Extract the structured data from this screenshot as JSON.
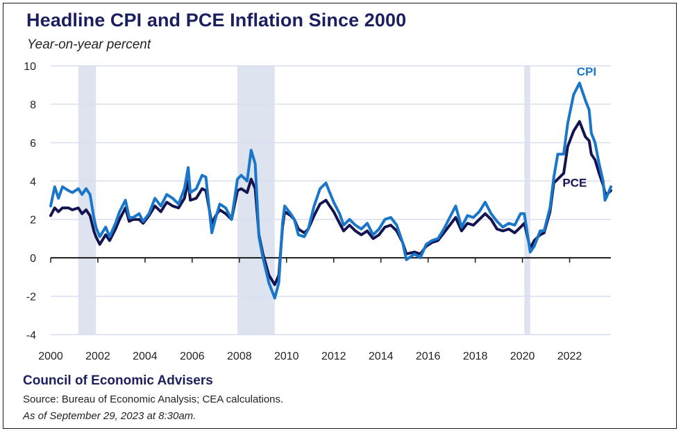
{
  "title": "Headline CPI and PCE Inflation Since 2000",
  "subtitle": "Year-on-year percent",
  "footer": {
    "org": "Council of Economic Advisers",
    "source": "Source: Bureau of Economic Analysis; CEA calculations.",
    "as_of": "As of September 29, 2023 at 8:30am."
  },
  "colors": {
    "cpi": "#1976c8",
    "pce": "#141450",
    "recession": "#dde3ef",
    "grid": "#d9def0",
    "axis": "#1a1a1a"
  },
  "chart_data": {
    "type": "line",
    "title": "Headline CPI and PCE Inflation Since 2000",
    "ylabel": "Year-on-year percent",
    "xlim": [
      2000,
      2023.75
    ],
    "ylim": [
      -4,
      10
    ],
    "yticks": [
      -4,
      -2,
      0,
      2,
      4,
      6,
      8,
      10
    ],
    "xticks": [
      2000,
      2002,
      2004,
      2006,
      2008,
      2010,
      2012,
      2014,
      2016,
      2018,
      2020,
      2022
    ],
    "ytick_labels": [
      "-4",
      "-2",
      "0",
      "2",
      "4",
      "6",
      "8",
      "10"
    ],
    "xtick_labels": [
      "2000",
      "2002",
      "2004",
      "2006",
      "2008",
      "2010",
      "2012",
      "2014",
      "2016",
      "2018",
      "2020",
      "2022"
    ],
    "grid": "horizontal",
    "recessions": [
      [
        2001.17,
        2001.92
      ],
      [
        2007.92,
        2009.5
      ],
      [
        2020.08,
        2020.33
      ]
    ],
    "series": [
      {
        "name": "CPI",
        "points": [
          [
            2000.0,
            2.7
          ],
          [
            2000.17,
            3.7
          ],
          [
            2000.33,
            3.1
          ],
          [
            2000.5,
            3.7
          ],
          [
            2000.75,
            3.5
          ],
          [
            2000.92,
            3.4
          ],
          [
            2001.17,
            3.6
          ],
          [
            2001.33,
            3.3
          ],
          [
            2001.5,
            3.6
          ],
          [
            2001.67,
            3.3
          ],
          [
            2001.83,
            2.1
          ],
          [
            2001.92,
            1.6
          ],
          [
            2002.08,
            1.1
          ],
          [
            2002.33,
            1.6
          ],
          [
            2002.5,
            1.1
          ],
          [
            2002.75,
            1.8
          ],
          [
            2002.92,
            2.4
          ],
          [
            2003.17,
            3.0
          ],
          [
            2003.33,
            2.1
          ],
          [
            2003.5,
            2.1
          ],
          [
            2003.75,
            2.3
          ],
          [
            2003.92,
            1.9
          ],
          [
            2004.17,
            2.3
          ],
          [
            2004.42,
            3.1
          ],
          [
            2004.67,
            2.7
          ],
          [
            2004.92,
            3.3
          ],
          [
            2005.17,
            3.1
          ],
          [
            2005.42,
            2.8
          ],
          [
            2005.67,
            3.6
          ],
          [
            2005.83,
            4.7
          ],
          [
            2005.92,
            3.4
          ],
          [
            2006.17,
            3.6
          ],
          [
            2006.42,
            4.3
          ],
          [
            2006.58,
            4.2
          ],
          [
            2006.83,
            1.3
          ],
          [
            2007.0,
            2.1
          ],
          [
            2007.17,
            2.8
          ],
          [
            2007.42,
            2.6
          ],
          [
            2007.67,
            2.0
          ],
          [
            2007.92,
            4.1
          ],
          [
            2008.08,
            4.3
          ],
          [
            2008.33,
            4.0
          ],
          [
            2008.5,
            5.6
          ],
          [
            2008.67,
            4.9
          ],
          [
            2008.83,
            1.1
          ],
          [
            2009.0,
            0.0
          ],
          [
            2009.25,
            -1.3
          ],
          [
            2009.5,
            -2.1
          ],
          [
            2009.67,
            -1.3
          ],
          [
            2009.83,
            1.8
          ],
          [
            2009.92,
            2.7
          ],
          [
            2010.17,
            2.3
          ],
          [
            2010.33,
            2.0
          ],
          [
            2010.5,
            1.2
          ],
          [
            2010.75,
            1.1
          ],
          [
            2010.92,
            1.5
          ],
          [
            2011.17,
            2.7
          ],
          [
            2011.42,
            3.6
          ],
          [
            2011.67,
            3.9
          ],
          [
            2011.83,
            3.4
          ],
          [
            2012.0,
            2.9
          ],
          [
            2012.25,
            2.3
          ],
          [
            2012.42,
            1.7
          ],
          [
            2012.67,
            2.0
          ],
          [
            2012.92,
            1.7
          ],
          [
            2013.17,
            1.5
          ],
          [
            2013.42,
            1.8
          ],
          [
            2013.67,
            1.2
          ],
          [
            2013.92,
            1.5
          ],
          [
            2014.17,
            2.0
          ],
          [
            2014.42,
            2.1
          ],
          [
            2014.67,
            1.7
          ],
          [
            2014.92,
            0.8
          ],
          [
            2015.08,
            -0.1
          ],
          [
            2015.42,
            0.2
          ],
          [
            2015.67,
            0.0
          ],
          [
            2015.92,
            0.7
          ],
          [
            2016.17,
            0.9
          ],
          [
            2016.42,
            1.0
          ],
          [
            2016.67,
            1.5
          ],
          [
            2016.92,
            2.1
          ],
          [
            2017.17,
            2.7
          ],
          [
            2017.42,
            1.6
          ],
          [
            2017.67,
            2.2
          ],
          [
            2017.92,
            2.1
          ],
          [
            2018.17,
            2.4
          ],
          [
            2018.42,
            2.9
          ],
          [
            2018.67,
            2.3
          ],
          [
            2018.92,
            1.9
          ],
          [
            2019.17,
            1.6
          ],
          [
            2019.42,
            1.8
          ],
          [
            2019.67,
            1.7
          ],
          [
            2019.92,
            2.3
          ],
          [
            2020.08,
            2.3
          ],
          [
            2020.33,
            0.3
          ],
          [
            2020.5,
            0.6
          ],
          [
            2020.75,
            1.4
          ],
          [
            2020.92,
            1.4
          ],
          [
            2021.17,
            2.6
          ],
          [
            2021.33,
            4.2
          ],
          [
            2021.5,
            5.4
          ],
          [
            2021.75,
            5.4
          ],
          [
            2021.92,
            7.0
          ],
          [
            2022.17,
            8.5
          ],
          [
            2022.42,
            9.1
          ],
          [
            2022.67,
            8.2
          ],
          [
            2022.83,
            7.7
          ],
          [
            2022.92,
            6.5
          ],
          [
            2023.08,
            6.0
          ],
          [
            2023.25,
            4.9
          ],
          [
            2023.42,
            4.0
          ],
          [
            2023.5,
            3.0
          ],
          [
            2023.58,
            3.2
          ],
          [
            2023.75,
            3.7
          ]
        ]
      },
      {
        "name": "PCE",
        "points": [
          [
            2000.0,
            2.2
          ],
          [
            2000.17,
            2.6
          ],
          [
            2000.33,
            2.4
          ],
          [
            2000.5,
            2.6
          ],
          [
            2000.75,
            2.6
          ],
          [
            2000.92,
            2.5
          ],
          [
            2001.17,
            2.6
          ],
          [
            2001.33,
            2.3
          ],
          [
            2001.5,
            2.5
          ],
          [
            2001.67,
            2.2
          ],
          [
            2001.83,
            1.4
          ],
          [
            2001.92,
            1.1
          ],
          [
            2002.08,
            0.7
          ],
          [
            2002.33,
            1.2
          ],
          [
            2002.5,
            0.9
          ],
          [
            2002.75,
            1.5
          ],
          [
            2002.92,
            2.0
          ],
          [
            2003.17,
            2.6
          ],
          [
            2003.33,
            1.9
          ],
          [
            2003.5,
            2.0
          ],
          [
            2003.75,
            2.0
          ],
          [
            2003.92,
            1.8
          ],
          [
            2004.17,
            2.2
          ],
          [
            2004.42,
            2.7
          ],
          [
            2004.67,
            2.4
          ],
          [
            2004.92,
            2.9
          ],
          [
            2005.17,
            2.7
          ],
          [
            2005.42,
            2.6
          ],
          [
            2005.67,
            3.1
          ],
          [
            2005.83,
            4.0
          ],
          [
            2005.92,
            3.0
          ],
          [
            2006.17,
            3.1
          ],
          [
            2006.42,
            3.6
          ],
          [
            2006.58,
            3.5
          ],
          [
            2006.83,
            1.8
          ],
          [
            2007.0,
            2.2
          ],
          [
            2007.17,
            2.5
          ],
          [
            2007.42,
            2.3
          ],
          [
            2007.67,
            2.0
          ],
          [
            2007.92,
            3.5
          ],
          [
            2008.08,
            3.6
          ],
          [
            2008.33,
            3.4
          ],
          [
            2008.5,
            4.1
          ],
          [
            2008.67,
            3.6
          ],
          [
            2008.83,
            1.2
          ],
          [
            2009.0,
            0.2
          ],
          [
            2009.25,
            -0.9
          ],
          [
            2009.5,
            -1.4
          ],
          [
            2009.67,
            -0.9
          ],
          [
            2009.83,
            1.6
          ],
          [
            2009.92,
            2.4
          ],
          [
            2010.17,
            2.2
          ],
          [
            2010.33,
            2.0
          ],
          [
            2010.5,
            1.5
          ],
          [
            2010.75,
            1.3
          ],
          [
            2010.92,
            1.5
          ],
          [
            2011.17,
            2.2
          ],
          [
            2011.42,
            2.8
          ],
          [
            2011.67,
            3.0
          ],
          [
            2011.83,
            2.7
          ],
          [
            2012.0,
            2.4
          ],
          [
            2012.25,
            1.8
          ],
          [
            2012.42,
            1.4
          ],
          [
            2012.67,
            1.7
          ],
          [
            2012.92,
            1.4
          ],
          [
            2013.17,
            1.2
          ],
          [
            2013.42,
            1.4
          ],
          [
            2013.67,
            1.0
          ],
          [
            2013.92,
            1.2
          ],
          [
            2014.17,
            1.6
          ],
          [
            2014.42,
            1.7
          ],
          [
            2014.67,
            1.4
          ],
          [
            2014.92,
            0.8
          ],
          [
            2015.08,
            0.2
          ],
          [
            2015.42,
            0.3
          ],
          [
            2015.67,
            0.2
          ],
          [
            2015.92,
            0.6
          ],
          [
            2016.17,
            0.8
          ],
          [
            2016.42,
            0.9
          ],
          [
            2016.67,
            1.3
          ],
          [
            2016.92,
            1.7
          ],
          [
            2017.17,
            2.1
          ],
          [
            2017.42,
            1.4
          ],
          [
            2017.67,
            1.8
          ],
          [
            2017.92,
            1.7
          ],
          [
            2018.17,
            2.0
          ],
          [
            2018.42,
            2.3
          ],
          [
            2018.67,
            2.0
          ],
          [
            2018.92,
            1.5
          ],
          [
            2019.17,
            1.4
          ],
          [
            2019.42,
            1.5
          ],
          [
            2019.67,
            1.3
          ],
          [
            2019.92,
            1.6
          ],
          [
            2020.08,
            1.8
          ],
          [
            2020.33,
            0.5
          ],
          [
            2020.5,
            0.9
          ],
          [
            2020.75,
            1.2
          ],
          [
            2020.92,
            1.3
          ],
          [
            2021.17,
            2.4
          ],
          [
            2021.33,
            3.9
          ],
          [
            2021.5,
            4.1
          ],
          [
            2021.75,
            4.4
          ],
          [
            2021.92,
            5.8
          ],
          [
            2022.17,
            6.6
          ],
          [
            2022.42,
            7.1
          ],
          [
            2022.67,
            6.3
          ],
          [
            2022.83,
            6.1
          ],
          [
            2022.92,
            5.4
          ],
          [
            2023.08,
            5.1
          ],
          [
            2023.25,
            4.4
          ],
          [
            2023.42,
            3.8
          ],
          [
            2023.5,
            3.4
          ],
          [
            2023.58,
            3.3
          ],
          [
            2023.75,
            3.5
          ]
        ]
      }
    ]
  }
}
